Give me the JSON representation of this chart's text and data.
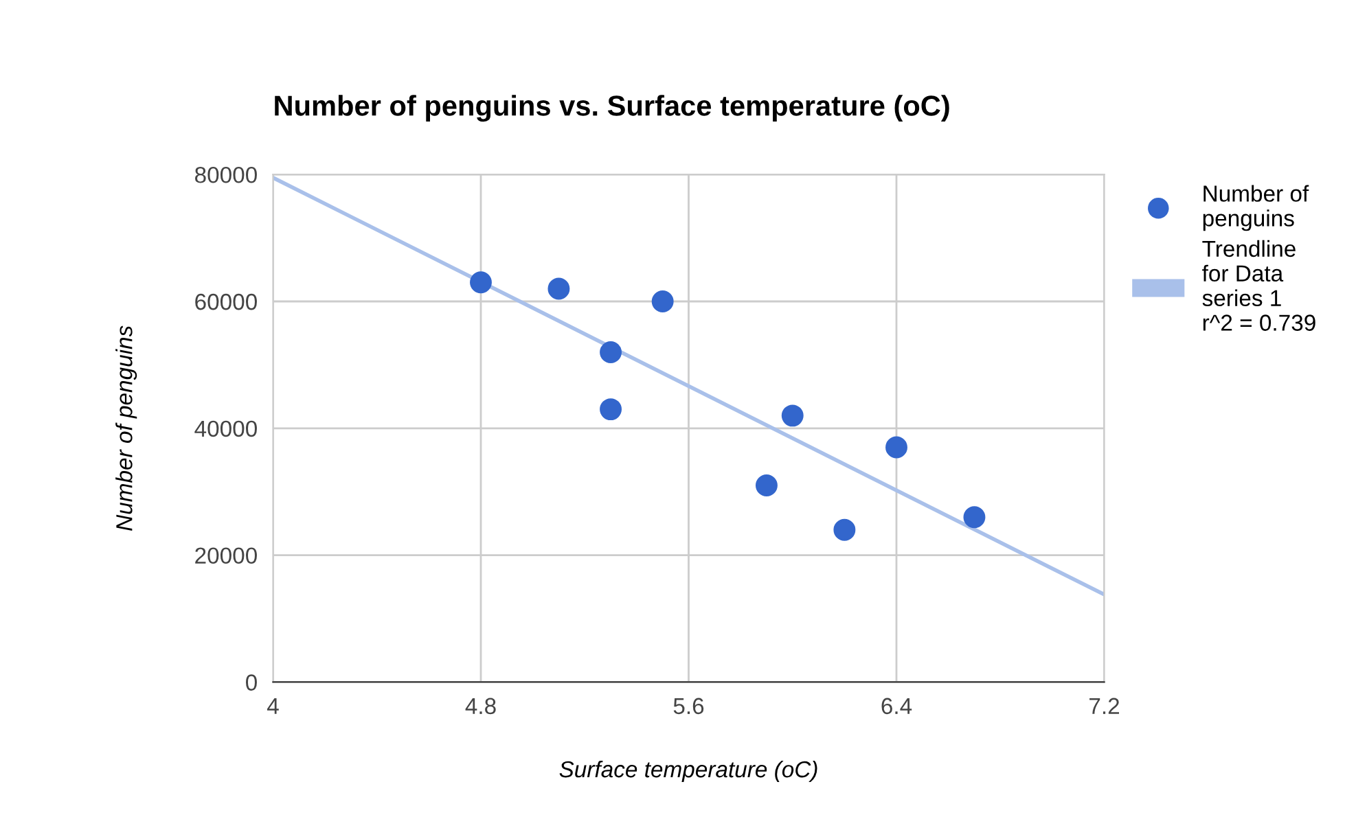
{
  "chart_data": {
    "type": "scatter",
    "title": "Number of penguins vs. Surface temperature (oC)",
    "xlabel": "Surface temperature (oC)",
    "ylabel": "Number of penguins",
    "series": [
      {
        "name": "Number of penguins",
        "marker": "circle",
        "color": "#3366cc",
        "x": [
          4.8,
          5.1,
          5.3,
          5.3,
          5.5,
          5.9,
          6.0,
          6.2,
          6.4,
          6.7
        ],
        "values": [
          63000,
          62000,
          52000,
          43000,
          60000,
          31000,
          42000,
          24000,
          37000,
          26000
        ]
      },
      {
        "name": "Trendline for Data series 1 r^2 = 0.739",
        "type": "line",
        "color": "#a9c0ea",
        "x": [
          4,
          7.2
        ],
        "values": [
          79500,
          13800
        ]
      }
    ],
    "xlim": [
      4,
      7.2
    ],
    "xticks": [
      4,
      4.8,
      5.6,
      6.4,
      7.2
    ],
    "ylim": [
      0,
      80000
    ],
    "yticks": [
      0,
      20000,
      40000,
      60000,
      80000
    ],
    "grid": true,
    "legend": "right"
  }
}
